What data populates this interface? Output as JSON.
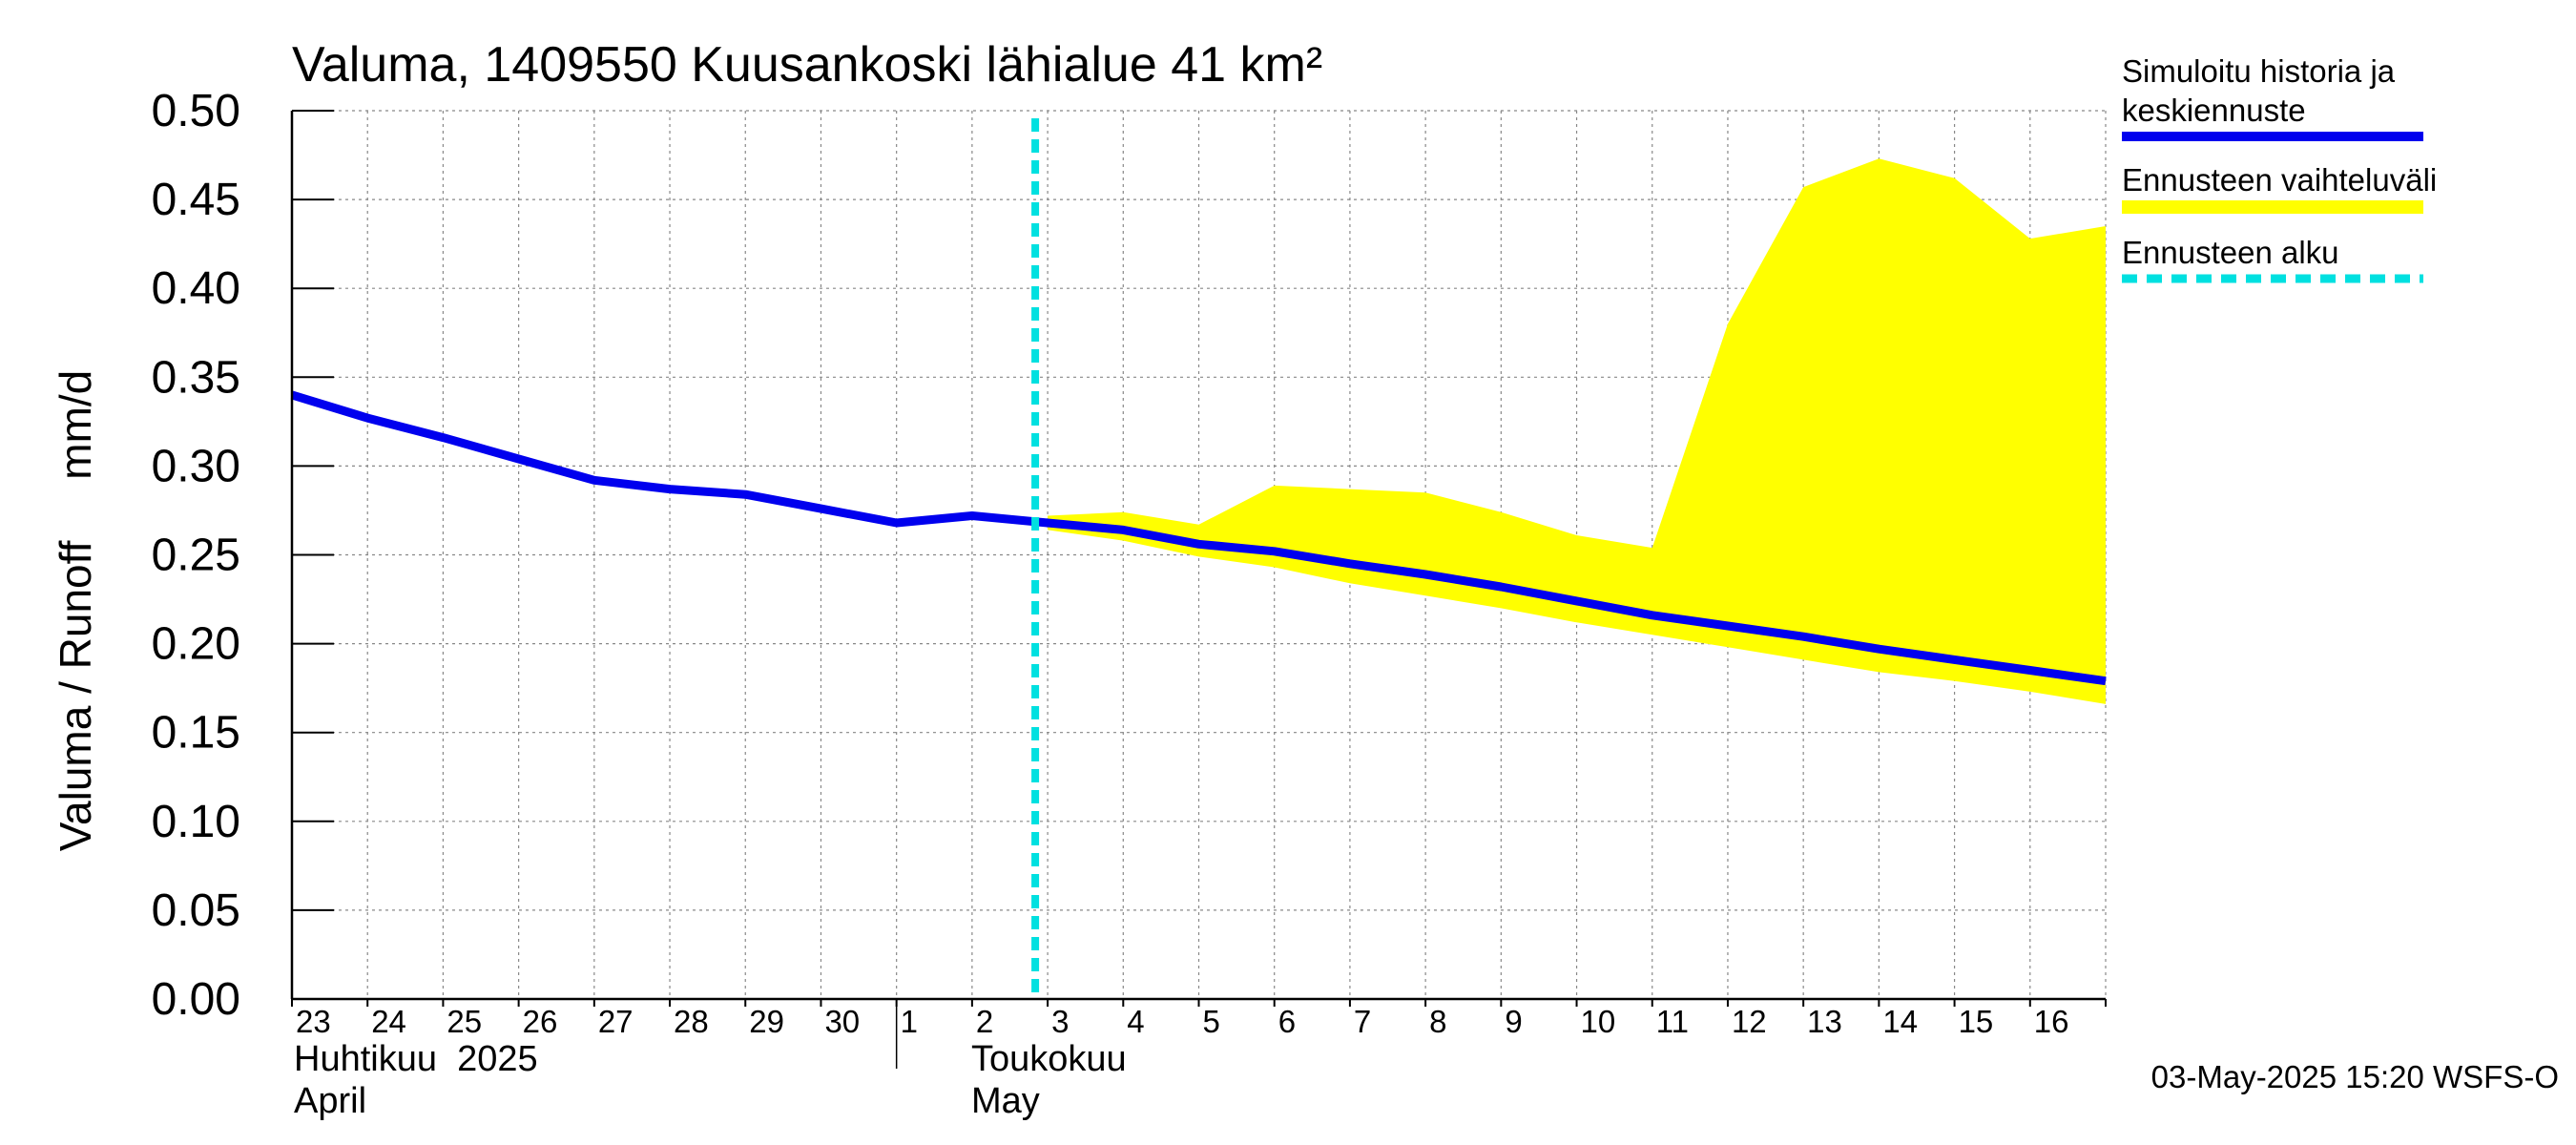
{
  "chart_data": {
    "type": "line",
    "title": "Valuma, 1409550 Kuusankoski lähialue 41 km²",
    "ylabel": "Valuma / Runoff     mm/d",
    "ylim": [
      0,
      0.5
    ],
    "yticks": [
      "0.00",
      "0.05",
      "0.10",
      "0.15",
      "0.20",
      "0.25",
      "0.30",
      "0.35",
      "0.40",
      "0.45",
      "0.50"
    ],
    "grid": true,
    "x_days": [
      "23",
      "24",
      "25",
      "26",
      "27",
      "28",
      "29",
      "30",
      "1",
      "2",
      "3",
      "4",
      "5",
      "6",
      "7",
      "8",
      "9",
      "10",
      "11",
      "12",
      "13",
      "14",
      "15",
      "16"
    ],
    "month_labels": [
      {
        "line1": "Huhtikuu  2025",
        "line2": "April"
      },
      {
        "line1": "Toukokuu",
        "line2": "May"
      }
    ],
    "forecast_start": "3 May",
    "series": [
      {
        "name": "Simuloitu historia ja keskiennuste",
        "color": "#0000ee",
        "x": [
          "2025-04-23",
          "2025-04-24",
          "2025-04-25",
          "2025-04-26",
          "2025-04-27",
          "2025-04-28",
          "2025-04-29",
          "2025-04-30",
          "2025-05-01",
          "2025-05-02",
          "2025-05-03",
          "2025-05-04",
          "2025-05-05",
          "2025-05-06",
          "2025-05-07",
          "2025-05-08",
          "2025-05-09",
          "2025-05-10",
          "2025-05-11",
          "2025-05-12",
          "2025-05-13",
          "2025-05-14",
          "2025-05-15",
          "2025-05-16",
          "2025-05-17"
        ],
        "values": [
          0.34,
          0.327,
          0.316,
          0.304,
          0.292,
          0.287,
          0.284,
          0.276,
          0.268,
          0.272,
          0.268,
          0.264,
          0.256,
          0.252,
          0.245,
          0.239,
          0.232,
          0.224,
          0.216,
          0.21,
          0.204,
          0.197,
          0.191,
          0.185,
          0.179
        ]
      }
    ],
    "band": {
      "name": "Ennusteen vaihteluväli",
      "color": "#ffff00",
      "x": [
        "2025-05-03",
        "2025-05-04",
        "2025-05-05",
        "2025-05-06",
        "2025-05-07",
        "2025-05-08",
        "2025-05-09",
        "2025-05-10",
        "2025-05-11",
        "2025-05-12",
        "2025-05-13",
        "2025-05-14",
        "2025-05-15",
        "2025-05-16",
        "2025-05-17"
      ],
      "upper": [
        0.272,
        0.274,
        0.267,
        0.289,
        0.287,
        0.285,
        0.274,
        0.261,
        0.254,
        0.38,
        0.457,
        0.473,
        0.462,
        0.428,
        0.435
      ],
      "lower": [
        0.264,
        0.258,
        0.249,
        0.243,
        0.234,
        0.227,
        0.22,
        0.212,
        0.205,
        0.198,
        0.191,
        0.184,
        0.179,
        0.173,
        0.166
      ]
    },
    "legend": [
      {
        "label_line1": "Simuloitu historia ja",
        "label_line2": "keskiennuste",
        "color": "#0000ee",
        "style": "solid"
      },
      {
        "label_line1": "Ennusteen vaihteluväli",
        "label_line2": "",
        "color": "#ffff00",
        "style": "solid"
      },
      {
        "label_line1": "Ennusteen alku",
        "label_line2": "",
        "color": "#00e0e0",
        "style": "dashed"
      }
    ],
    "legend_position": "right",
    "footer": "03-May-2025 15:20 WSFS-O"
  }
}
